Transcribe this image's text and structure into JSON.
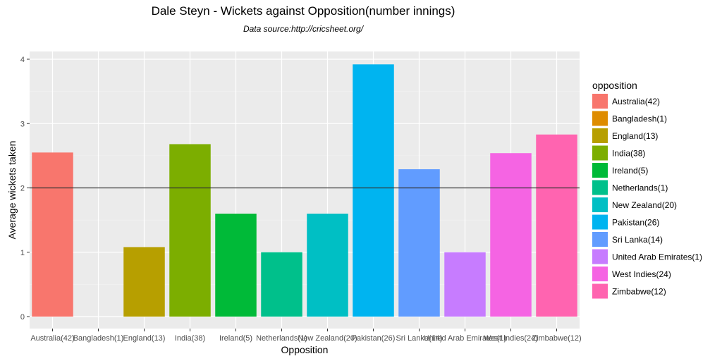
{
  "chart_data": {
    "type": "bar",
    "title": "Dale Steyn - Wickets against Opposition(number innings)",
    "subtitle": "Data source:http://cricsheet.org/",
    "xlabel": "Opposition",
    "ylabel": "Average wickets taken",
    "ylim": [
      0,
      4.1
    ],
    "yticks": [
      0,
      1,
      2,
      3,
      4
    ],
    "reference_line": 2,
    "grid": true,
    "legend_title": "opposition",
    "legend_position": "right",
    "categories": [
      "Australia(42)",
      "Bangladesh(1)",
      "England(13)",
      "India(38)",
      "Ireland(5)",
      "Netherlands(1)",
      "New Zealand(20)",
      "Pakistan(26)",
      "Sri Lanka(14)",
      "United Arab Emirates(1)",
      "West Indies(24)",
      "Zimbabwe(12)"
    ],
    "values": [
      2.55,
      0,
      1.08,
      2.68,
      1.6,
      1.0,
      1.6,
      3.92,
      2.29,
      1.0,
      2.54,
      2.83
    ],
    "colors": [
      "#F8766D",
      "#DE8C00",
      "#B79F00",
      "#7CAE00",
      "#00BA38",
      "#00C08B",
      "#00BFC4",
      "#00B4F0",
      "#619CFF",
      "#C77CFF",
      "#F564E3",
      "#FF64B0"
    ]
  }
}
